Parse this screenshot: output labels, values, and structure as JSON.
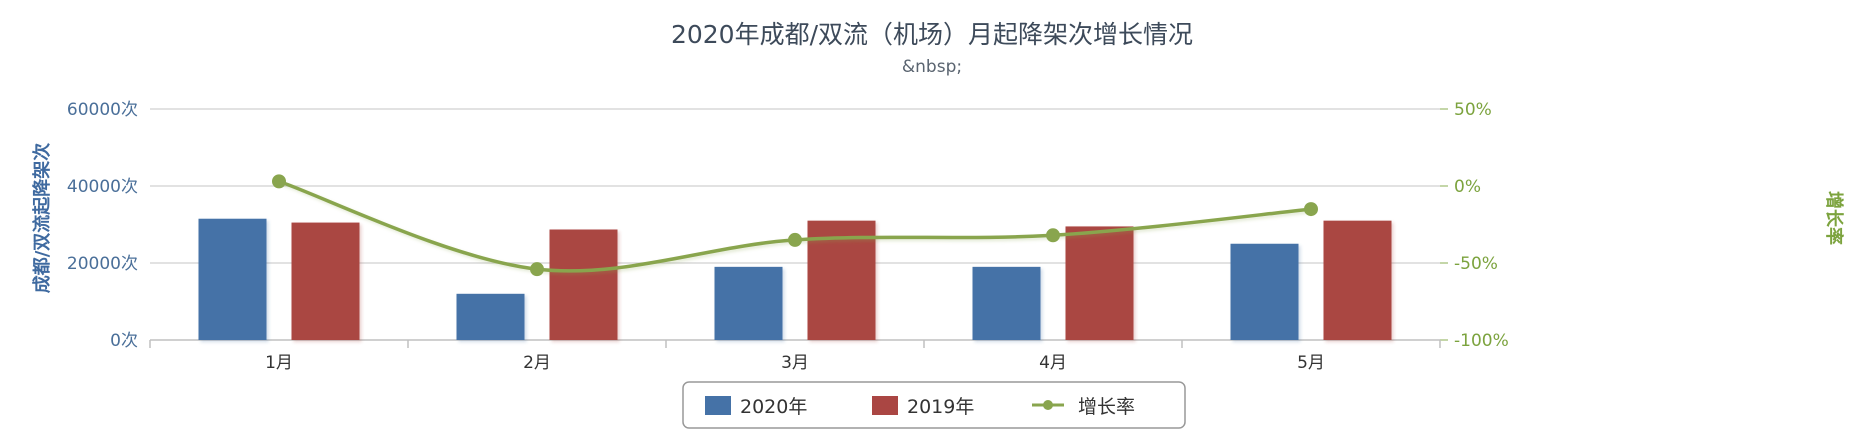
{
  "chart_data": {
    "type": "bar",
    "title": "2020年成都/双流（机场）月起降架次增长情况",
    "subtitle": "&nbsp;",
    "categories": [
      "1月",
      "2月",
      "3月",
      "4月",
      "5月"
    ],
    "series": [
      {
        "name": "2020年",
        "type": "bar",
        "axis": "left",
        "color": "#4572a7",
        "values": [
          31500,
          12000,
          19000,
          19000,
          25000
        ]
      },
      {
        "name": "2019年",
        "type": "bar",
        "axis": "left",
        "color": "#aa4643",
        "values": [
          30500,
          28700,
          31000,
          29500,
          31000
        ]
      },
      {
        "name": "增长率",
        "type": "line",
        "axis": "right",
        "color": "#89a54e",
        "values": [
          3,
          -54,
          -35,
          -32,
          -15
        ]
      }
    ],
    "ylabel_left": "成都/双流起降架次",
    "ylabel_right": "增长率",
    "ylim_left": [
      0,
      60000
    ],
    "ylim_right": [
      -100,
      50
    ],
    "yticks_left": [
      "0次",
      "20000次",
      "40000次",
      "60000次"
    ],
    "yticks_right": [
      "-100%",
      "-50%",
      "0%",
      "50%"
    ],
    "grid": true,
    "legend": "bottom-center"
  }
}
